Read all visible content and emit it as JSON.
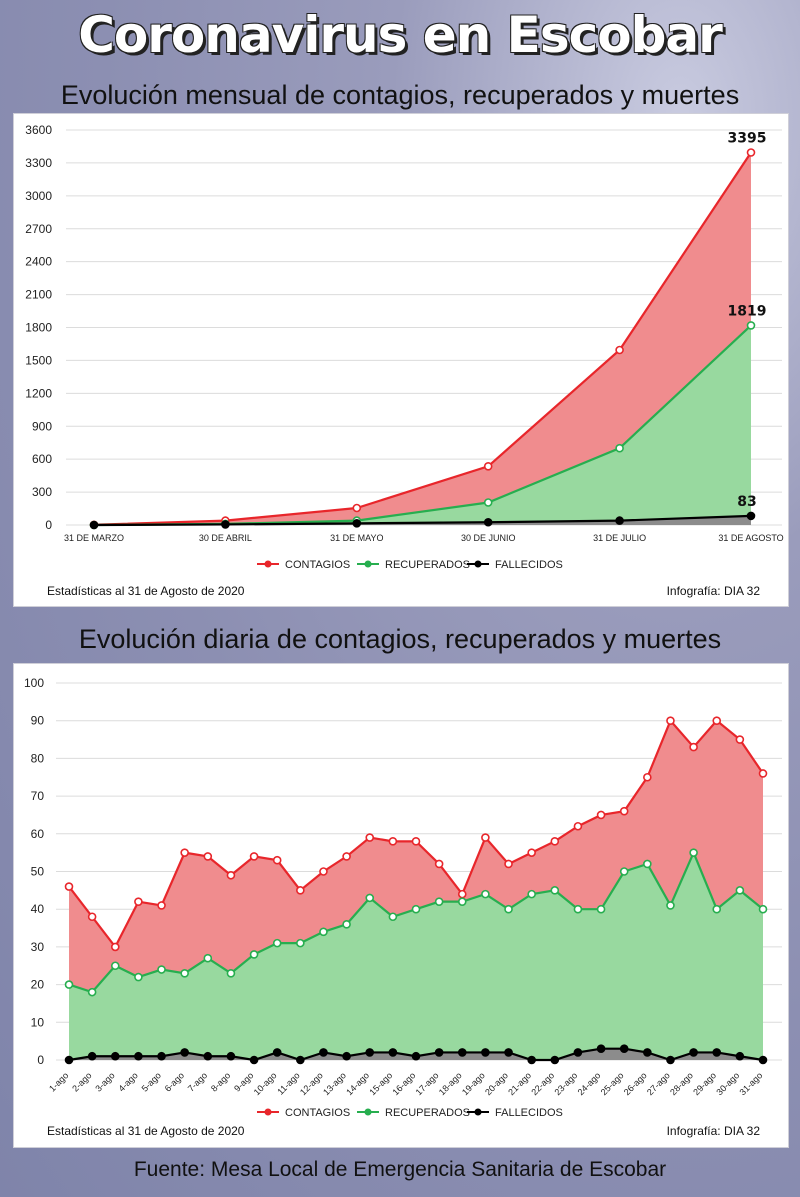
{
  "title": "Coronavirus en Escobar",
  "source": "Fuente: Mesa Local de Emergencia Sanitaria de Escobar",
  "colors": {
    "contagios": "#e8262b",
    "contagios_fill": "#f08c8e",
    "recuperados": "#27ae4f",
    "recuperados_fill": "#98d99f",
    "fallecidos": "#000000",
    "fallecidos_fill": "#8c8c8c"
  },
  "chart_data": [
    {
      "type": "area",
      "title": "Evolución mensual de contagios, recuperados y muertes",
      "categories": [
        "31 DE MARZO",
        "30 DE ABRIL",
        "31 DE MAYO",
        "30 DE JUNIO",
        "31 DE JULIO",
        "31 DE AGOSTO"
      ],
      "series": [
        {
          "name": "CONTAGIOS",
          "values": [
            2,
            40,
            155,
            535,
            1595,
            3395
          ]
        },
        {
          "name": "RECUPERADOS",
          "values": [
            0,
            10,
            40,
            205,
            700,
            1819
          ]
        },
        {
          "name": "FALLECIDOS",
          "values": [
            0,
            5,
            15,
            25,
            40,
            83
          ]
        }
      ],
      "data_labels": [
        "3395",
        "1819",
        "83"
      ],
      "yticks": [
        "0",
        "300",
        "600",
        "900",
        "1200",
        "1500",
        "1800",
        "2100",
        "2400",
        "2700",
        "3000",
        "3300",
        "3600"
      ],
      "ylim": [
        0,
        3600
      ],
      "grid": true,
      "legend": "bottom",
      "note_left": "Estadísticas al 31 de Agosto de 2020",
      "note_right": "Infografía: DIA 32"
    },
    {
      "type": "area",
      "title": "Evolución diaria de contagios, recuperados y muertes",
      "categories": [
        "1-ago",
        "2-ago",
        "3-ago",
        "4-ago",
        "5-ago",
        "6-ago",
        "7-ago",
        "8-ago",
        "9-ago",
        "10-ago",
        "11-ago",
        "12-ago",
        "13-ago",
        "14-ago",
        "15-ago",
        "16-ago",
        "17-ago",
        "18-ago",
        "19-ago",
        "20-ago",
        "21-ago",
        "22-ago",
        "23-ago",
        "24-ago",
        "25-ago",
        "26-ago",
        "27-ago",
        "28-ago",
        "29-ago",
        "30-ago",
        "31-ago"
      ],
      "series": [
        {
          "name": "CONTAGIOS",
          "values": [
            46,
            38,
            30,
            42,
            41,
            55,
            54,
            49,
            54,
            53,
            45,
            50,
            54,
            59,
            58,
            58,
            52,
            44,
            59,
            52,
            55,
            58,
            62,
            65,
            66,
            75,
            90,
            83,
            90,
            85,
            76
          ]
        },
        {
          "name": "RECUPERADOS",
          "values": [
            20,
            18,
            25,
            22,
            24,
            23,
            27,
            23,
            28,
            31,
            31,
            34,
            36,
            43,
            38,
            40,
            42,
            42,
            44,
            40,
            44,
            45,
            40,
            40,
            50,
            52,
            41,
            55,
            40,
            45,
            40
          ]
        },
        {
          "name": "FALLECIDOS",
          "values": [
            0,
            1,
            1,
            1,
            1,
            2,
            1,
            1,
            0,
            2,
            0,
            2,
            1,
            2,
            2,
            1,
            2,
            2,
            2,
            2,
            0,
            0,
            2,
            3,
            3,
            2,
            0,
            2,
            2,
            1,
            0
          ]
        }
      ],
      "yticks": [
        "0",
        "10",
        "20",
        "30",
        "40",
        "50",
        "60",
        "70",
        "80",
        "90",
        "100"
      ],
      "ylim": [
        0,
        100
      ],
      "grid": true,
      "legend": "bottom",
      "note_left": "Estadísticas al 31 de Agosto de 2020",
      "note_right": "Infografía: DIA 32"
    }
  ]
}
